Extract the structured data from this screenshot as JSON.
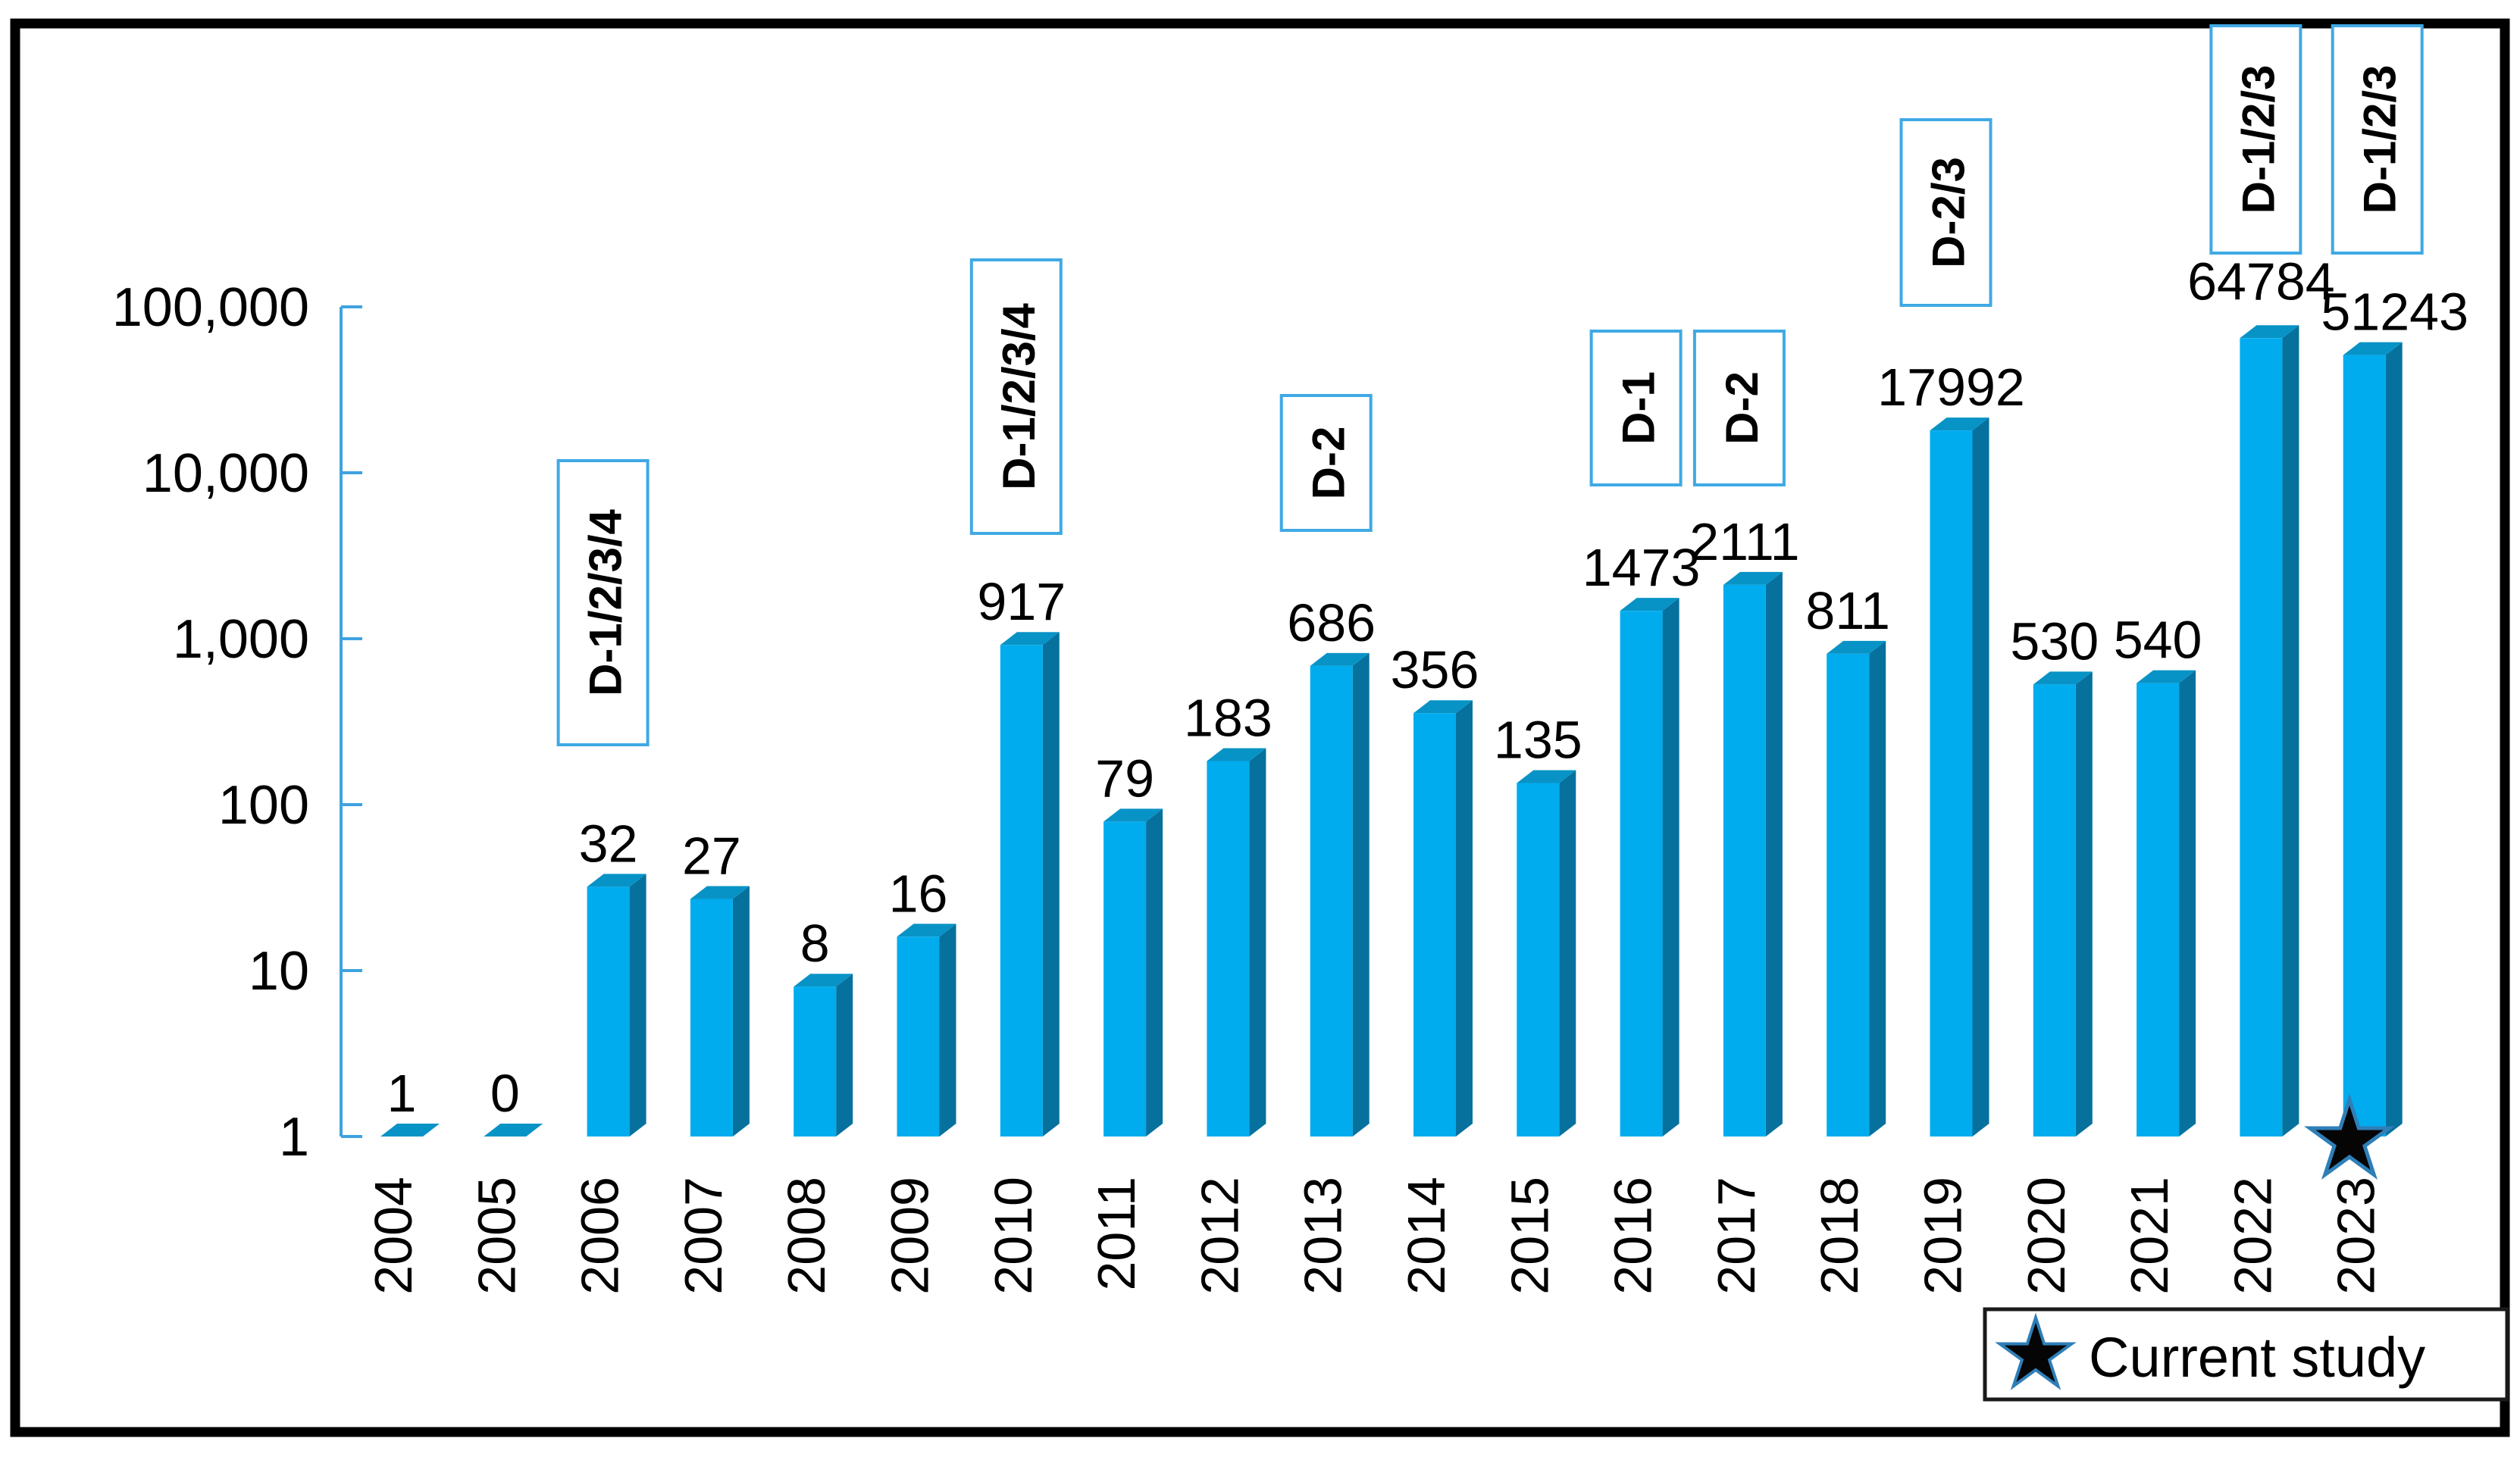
{
  "chart_data": {
    "type": "bar",
    "title": "",
    "xlabel": "",
    "ylabel": "",
    "yscale": "log",
    "ylim": [
      1,
      100000
    ],
    "grid": false,
    "legend_position": "bottom-right",
    "categories": [
      "2004",
      "2005",
      "2006",
      "2007",
      "2008",
      "2009",
      "2010",
      "2011",
      "2012",
      "2013",
      "2014",
      "2015",
      "2016",
      "2017",
      "2018",
      "2019",
      "2020",
      "2021",
      "2022",
      "2023"
    ],
    "values": [
      1,
      0,
      32,
      27,
      8,
      16,
      917,
      79,
      183,
      686,
      356,
      135,
      1473,
      2111,
      811,
      17992,
      530,
      540,
      64784,
      51243
    ],
    "value_labels": [
      "1",
      "0",
      "32",
      "27",
      "8",
      "16",
      "917",
      "79",
      "183",
      "686",
      "356",
      "135",
      "1473",
      "2111",
      "811",
      "17992",
      "530",
      "540",
      "64784",
      "51243"
    ],
    "ytick_labels": [
      "1",
      "10",
      "100",
      "1,000",
      "10,000",
      "100,000"
    ],
    "annotations": [
      {
        "category": "2006",
        "label": "D-1/2/3/4"
      },
      {
        "category": "2010",
        "label": "D-1/2/3/4"
      },
      {
        "category": "2013",
        "label": "D-2"
      },
      {
        "category": "2016",
        "label": "D-1"
      },
      {
        "category": "2017",
        "label": "D-2"
      },
      {
        "category": "2019",
        "label": "D-2/3"
      },
      {
        "category": "2022",
        "label": "D-1/2/3"
      },
      {
        "category": "2023",
        "label": "D-1/2/3"
      }
    ],
    "marker": {
      "category": "2023",
      "shape": "star",
      "meaning": "current-study"
    },
    "legend": {
      "marker": "star-icon",
      "label": "Current study"
    },
    "colors": {
      "bar_face": "#00ACEE",
      "bar_side": "#06719D",
      "bar_top": "#0893C6",
      "axis": "#3FA2E0",
      "annotation_border": "#3FA9E4",
      "star_fill": "#050505",
      "star_stroke": "#2E7FB8",
      "frame": "#000000",
      "text": "#000000"
    }
  }
}
